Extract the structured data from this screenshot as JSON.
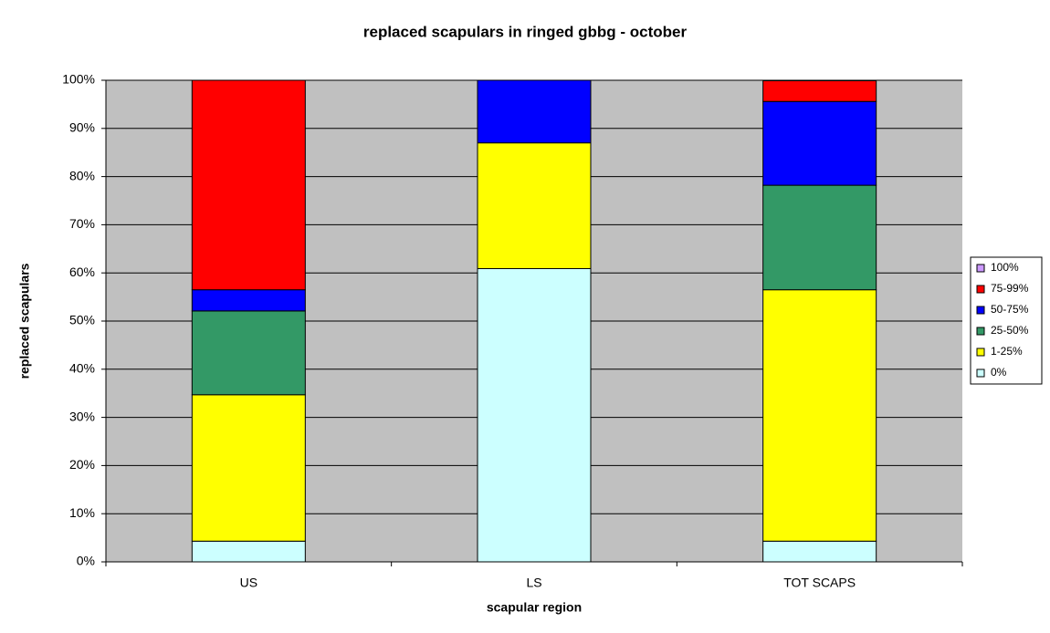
{
  "chart_data": {
    "type": "stacked_bar",
    "title": "replaced scapulars in ringed gbbg - october",
    "x_label": "scapular region",
    "y_label": "replaced scapulars",
    "categories": [
      "US",
      "LS",
      "TOT SCAPS"
    ],
    "series": [
      {
        "name": "0%",
        "color": "#ccffff",
        "values": [
          4.3,
          60.9,
          4.3
        ]
      },
      {
        "name": "1-25%",
        "color": "#ffff00",
        "values": [
          30.4,
          26.1,
          52.2
        ]
      },
      {
        "name": "25-50%",
        "color": "#339966",
        "values": [
          17.4,
          0,
          21.7
        ]
      },
      {
        "name": "50-75%",
        "color": "#0000ff",
        "values": [
          4.4,
          13.0,
          17.4
        ]
      },
      {
        "name": "75-99%",
        "color": "#ff0000",
        "values": [
          43.5,
          0,
          4.3
        ]
      },
      {
        "name": "100%",
        "color": "#cc99ff",
        "values": [
          0,
          0,
          0
        ]
      }
    ],
    "ylim": [
      0,
      100
    ],
    "yticks": [
      {
        "value": 0,
        "label": "0%"
      },
      {
        "value": 10,
        "label": "10%"
      },
      {
        "value": 20,
        "label": "20%"
      },
      {
        "value": 30,
        "label": "30%"
      },
      {
        "value": 40,
        "label": "40%"
      },
      {
        "value": 50,
        "label": "50%"
      },
      {
        "value": 60,
        "label": "60%"
      },
      {
        "value": 70,
        "label": "70%"
      },
      {
        "value": 80,
        "label": "80%"
      },
      {
        "value": 90,
        "label": "90%"
      },
      {
        "value": 100,
        "label": "100%"
      }
    ],
    "grid": true,
    "plot_background": "#c0c0c0",
    "legend": "right"
  }
}
